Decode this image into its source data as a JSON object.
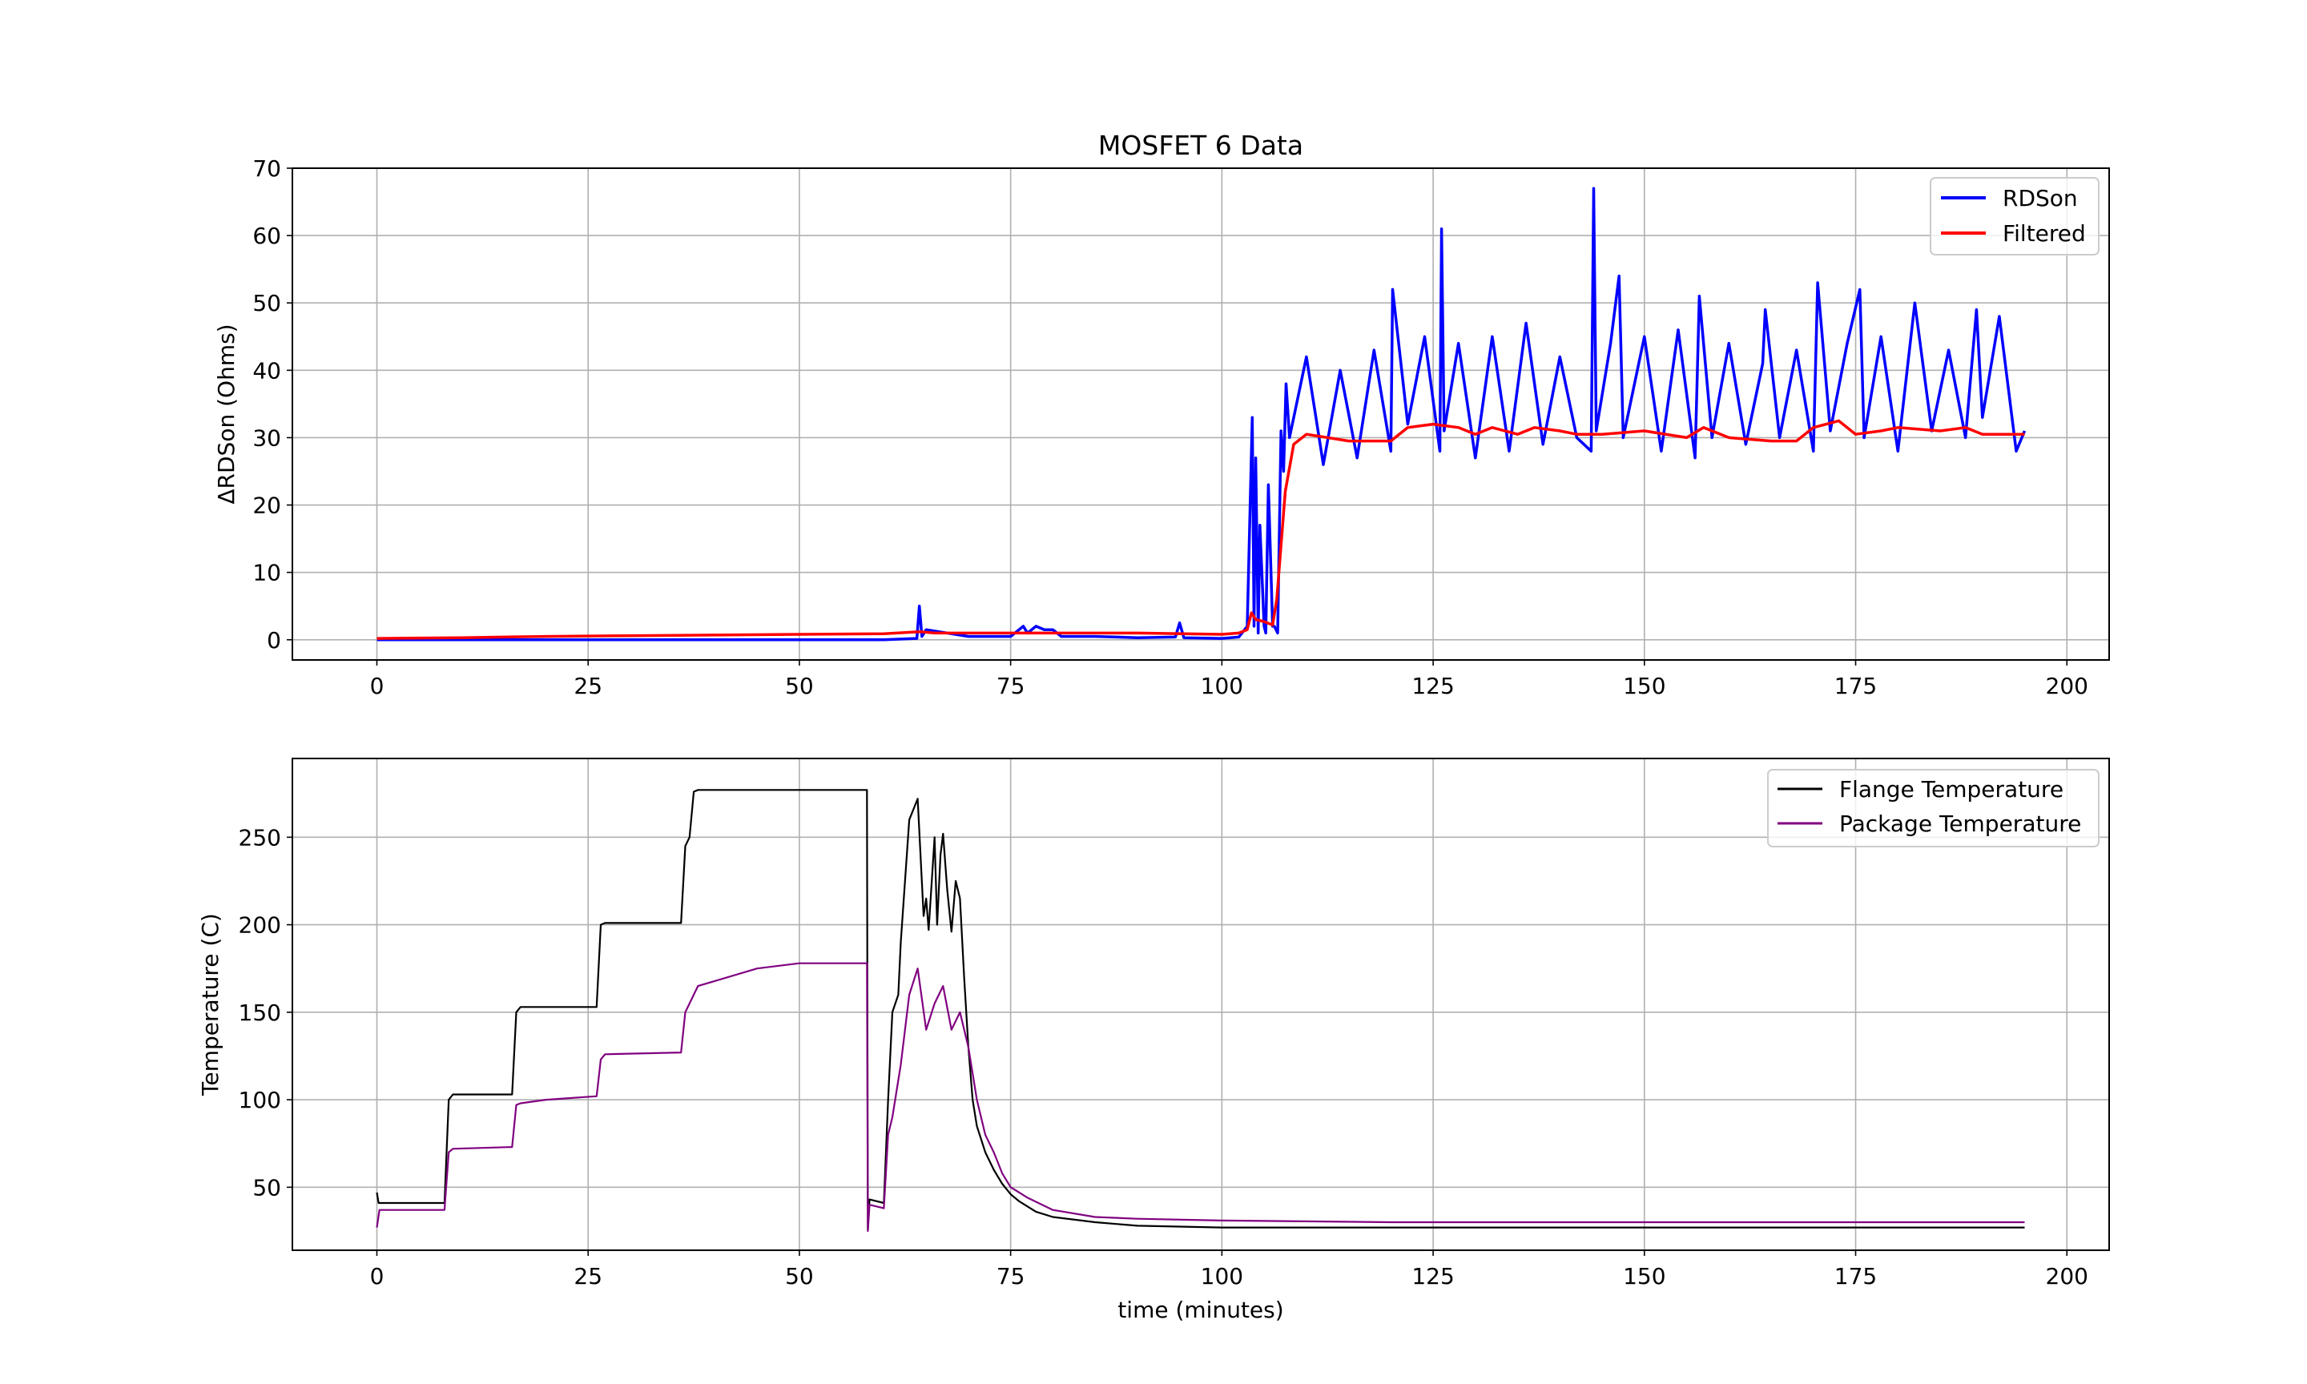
{
  "chart_data": [
    {
      "type": "line",
      "title": "MOSFET 6 Data",
      "xlabel": "",
      "ylabel": "ΔRDSon (Ohms)",
      "xlim": [
        -10,
        205
      ],
      "ylim": [
        -3,
        70
      ],
      "xticks": [
        0,
        25,
        50,
        75,
        100,
        125,
        150,
        175,
        200
      ],
      "yticks": [
        0,
        10,
        20,
        30,
        40,
        50,
        60,
        70
      ],
      "grid": true,
      "legend_position": "top-right",
      "series": [
        {
          "name": "RDSon",
          "color": "#0000ff",
          "x": [
            0,
            10,
            20,
            30,
            40,
            50,
            60,
            63.9,
            64.2,
            64.5,
            65,
            70,
            75,
            76.5,
            77,
            78,
            79,
            80,
            81,
            85,
            90,
            94.5,
            95,
            95.5,
            100,
            102,
            103,
            103.6,
            103.8,
            104,
            104.3,
            104.5,
            105,
            105.2,
            105.5,
            106,
            106.2,
            106.6,
            107,
            107.3,
            107.6,
            108,
            110,
            112,
            114,
            116,
            118,
            120,
            120.2,
            122,
            124,
            125.8,
            126,
            126.3,
            128,
            130,
            132,
            134,
            136,
            138,
            140,
            142,
            143.7,
            144,
            144.3,
            146,
            147,
            147.5,
            150,
            152,
            154,
            156,
            156.5,
            158,
            160,
            162,
            164,
            164.3,
            166,
            168,
            170,
            170.5,
            172,
            174,
            175.5,
            176,
            178,
            180,
            182,
            184,
            186,
            188,
            189.3,
            190,
            192,
            194,
            195
          ],
          "values": [
            0,
            0,
            0,
            0,
            0,
            0,
            0,
            0.2,
            5,
            0.5,
            1.5,
            0.5,
            0.5,
            2,
            1,
            2,
            1.5,
            1.5,
            0.5,
            0.5,
            0.3,
            0.4,
            2.5,
            0.3,
            0.2,
            0.4,
            2,
            33,
            2,
            27,
            1,
            17,
            2,
            1,
            23,
            2,
            2,
            1,
            31,
            25,
            38,
            30,
            42,
            26,
            40,
            27,
            43,
            28,
            52,
            32,
            45,
            28,
            61,
            31,
            44,
            27,
            45,
            28,
            47,
            29,
            42,
            30,
            28,
            67,
            31,
            44,
            54,
            30,
            45,
            28,
            46,
            27,
            51,
            30,
            44,
            29,
            41,
            49,
            30,
            43,
            28,
            53,
            31,
            44,
            52,
            30,
            45,
            28,
            50,
            31,
            43,
            30,
            49,
            33,
            48,
            28,
            31
          ]
        },
        {
          "name": "Filtered",
          "color": "#ff0000",
          "x": [
            0,
            10,
            20,
            30,
            40,
            50,
            60,
            64.3,
            66,
            70,
            80,
            90,
            100,
            102,
            103,
            103.5,
            104,
            105,
            106,
            106.5,
            107.5,
            108.5,
            110,
            115,
            120,
            122,
            125,
            128,
            130,
            132,
            135,
            137,
            140,
            142,
            145,
            150,
            155,
            157,
            160,
            165,
            168,
            170,
            173,
            175,
            178,
            180,
            185,
            188,
            190,
            195
          ],
          "values": [
            0.2,
            0.3,
            0.5,
            0.6,
            0.7,
            0.8,
            0.9,
            1.2,
            1.0,
            1.0,
            1.0,
            1.0,
            0.8,
            1.0,
            1.5,
            4,
            3,
            2.7,
            2.2,
            6,
            22,
            29,
            30.5,
            29.5,
            29.5,
            31.5,
            32,
            31.5,
            30.5,
            31.5,
            30.5,
            31.5,
            31,
            30.5,
            30.5,
            31,
            30,
            31.5,
            30,
            29.5,
            29.5,
            31.5,
            32.5,
            30.5,
            31,
            31.5,
            31,
            31.5,
            30.5,
            30.5
          ]
        }
      ]
    },
    {
      "type": "line",
      "title": "",
      "xlabel": "time (minutes)",
      "ylabel": "Temperature (C)",
      "xlim": [
        -10,
        205
      ],
      "ylim": [
        14,
        295
      ],
      "xticks": [
        0,
        25,
        50,
        75,
        100,
        125,
        150,
        175,
        200
      ],
      "yticks": [
        50,
        100,
        150,
        200,
        250
      ],
      "grid": true,
      "legend_position": "top-right",
      "series": [
        {
          "name": "Flange Temperature",
          "color": "#000000",
          "x": [
            0,
            0.2,
            8,
            8.5,
            9,
            16,
            16.5,
            17,
            26,
            26.5,
            27,
            36,
            36.5,
            37,
            37.5,
            38,
            50,
            58,
            58.1,
            58.3,
            60,
            60.5,
            61,
            61.7,
            62,
            63,
            64,
            64.7,
            65,
            65.3,
            66,
            66.3,
            66.7,
            67,
            67.5,
            68,
            68.5,
            69,
            69.5,
            70,
            70.5,
            71,
            72,
            73,
            74,
            75,
            76,
            78,
            80,
            85,
            90,
            100,
            110,
            130,
            150,
            170,
            195
          ],
          "values": [
            47,
            41,
            41,
            100,
            103,
            103,
            150,
            153,
            153,
            200,
            201,
            201,
            245,
            250,
            276,
            277,
            277,
            277,
            26,
            43,
            41,
            100,
            150,
            160,
            190,
            260,
            272,
            205,
            215,
            197,
            250,
            200,
            240,
            252,
            220,
            196,
            225,
            215,
            170,
            130,
            100,
            85,
            70,
            60,
            52,
            46,
            42,
            36,
            33,
            30,
            28,
            27,
            27,
            27,
            27,
            27,
            27
          ]
        },
        {
          "name": "Package Temperature",
          "color": "#800080",
          "x": [
            0,
            0.3,
            8,
            8.5,
            9,
            16,
            16.5,
            17,
            20,
            26,
            26.5,
            27,
            36,
            36.5,
            37,
            38,
            45,
            50,
            58,
            58.1,
            58.3,
            60,
            60.5,
            61,
            62,
            63,
            64,
            65,
            66,
            67,
            68,
            69,
            70,
            71,
            72,
            73,
            74,
            75,
            77,
            80,
            85,
            90,
            100,
            120,
            150,
            195
          ],
          "values": [
            27,
            37,
            37,
            70,
            72,
            73,
            97,
            98,
            100,
            102,
            123,
            126,
            127,
            150,
            155,
            165,
            175,
            178,
            178,
            25,
            40,
            38,
            80,
            90,
            120,
            160,
            175,
            140,
            155,
            165,
            140,
            150,
            130,
            100,
            80,
            70,
            58,
            50,
            44,
            37,
            33,
            32,
            31,
            30,
            30,
            30
          ]
        }
      ]
    }
  ]
}
